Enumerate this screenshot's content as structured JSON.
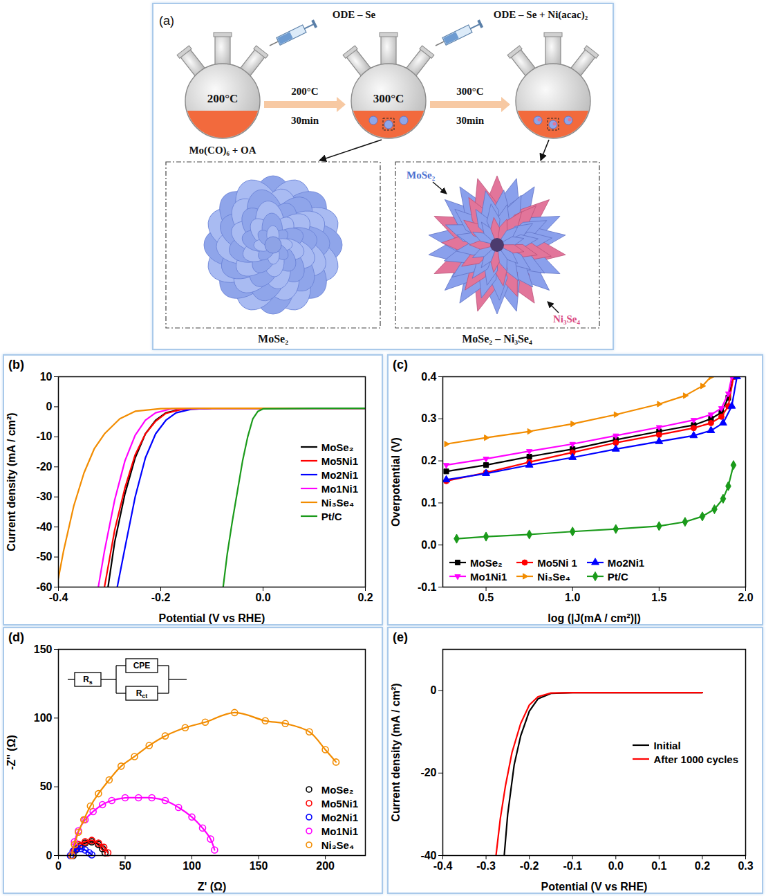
{
  "panel_a": {
    "letter": "(a)",
    "syringe_labels": [
      "ODE – Se",
      "ODE – Se + Ni(acac)₂"
    ],
    "flask_labels": [
      "200°C",
      "300°C"
    ],
    "precursor": "Mo(CO)₆ + OA",
    "steps": [
      {
        "temperature": "200°C",
        "time": "30min"
      },
      {
        "temperature": "300°C",
        "time": "30min"
      }
    ],
    "products": [
      {
        "caption": "MoSe₂"
      },
      {
        "caption": "MoSe₂ – Ni₃Se₄",
        "labels": [
          "MoSe₂",
          "Ni₃Se₄"
        ]
      }
    ]
  },
  "chart_data": [
    {
      "panel": "(b)",
      "type": "line",
      "x_label": "Potential (V vs RHE)",
      "y_label": "Current density (mA / cm²)",
      "xlim": [
        -0.4,
        0.2
      ],
      "ylim": [
        -60,
        10
      ],
      "xticks": [
        -0.4,
        -0.2,
        {
          "value": 0,
          "label": "0.0"
        },
        0.2
      ],
      "yticks": [
        -60,
        -50,
        -40,
        -30,
        -20,
        -10,
        0,
        10
      ],
      "grid": false,
      "legend": "right",
      "series": [
        {
          "name": "MoSe₂",
          "color": "#000000",
          "line_style": "solid",
          "x": [
            0.2,
            0.0,
            -0.1,
            -0.16,
            -0.19,
            -0.21,
            -0.23,
            -0.25,
            -0.27,
            -0.29,
            -0.303
          ],
          "values": [
            -0.5,
            -0.5,
            -0.5,
            -0.8,
            -2,
            -4.5,
            -9,
            -17,
            -29,
            -45,
            -60
          ]
        },
        {
          "name": "Mo5Ni1",
          "color": "#ff0000",
          "line_style": "solid",
          "x": [
            0.2,
            0.0,
            -0.1,
            -0.16,
            -0.19,
            -0.21,
            -0.23,
            -0.25,
            -0.27,
            -0.29,
            -0.31
          ],
          "values": [
            -0.5,
            -0.5,
            -0.5,
            -0.9,
            -2.2,
            -4.8,
            -9,
            -16,
            -27,
            -41,
            -60
          ]
        },
        {
          "name": "Mo2Ni1",
          "color": "#0000ff",
          "line_style": "solid",
          "x": [
            0.2,
            0.0,
            -0.1,
            -0.14,
            -0.17,
            -0.19,
            -0.21,
            -0.23,
            -0.25,
            -0.27,
            -0.285
          ],
          "values": [
            -0.5,
            -0.5,
            -0.5,
            -0.8,
            -2,
            -4.5,
            -9,
            -17,
            -30,
            -47,
            -60
          ]
        },
        {
          "name": "Mo1Ni1",
          "color": "#ff00ff",
          "line_style": "solid",
          "x": [
            0.2,
            0.0,
            -0.1,
            -0.18,
            -0.21,
            -0.23,
            -0.25,
            -0.27,
            -0.29,
            -0.31,
            -0.322
          ],
          "values": [
            -0.5,
            -0.5,
            -0.5,
            -0.7,
            -2,
            -4.5,
            -9.5,
            -18,
            -31,
            -48,
            -60
          ]
        },
        {
          "name": "Ni₃Se₄",
          "color": "#f28c00",
          "line_style": "solid",
          "x": [
            0.2,
            0.0,
            -0.1,
            -0.2,
            -0.25,
            -0.28,
            -0.31,
            -0.33,
            -0.35,
            -0.37,
            -0.39,
            -0.4
          ],
          "values": [
            -0.5,
            -0.5,
            -0.5,
            -0.6,
            -1.5,
            -4,
            -9,
            -14,
            -22,
            -33,
            -48,
            -57
          ]
        },
        {
          "name": "Pt/C",
          "color": "#1a9a1a",
          "line_style": "solid",
          "x": [
            0.2,
            0.1,
            0.0,
            -0.01,
            -0.02,
            -0.03,
            -0.04,
            -0.05,
            -0.06,
            -0.07,
            -0.078
          ],
          "values": [
            -0.5,
            -0.5,
            -0.7,
            -1.5,
            -4,
            -10,
            -18,
            -28,
            -38,
            -49,
            -60
          ]
        }
      ]
    },
    {
      "panel": "(c)",
      "type": "line",
      "x_label": "log (|J(mA / cm²)|)",
      "y_label": "Overpotential (V)",
      "xlim": [
        0.25,
        2.0
      ],
      "ylim": [
        -0.1,
        0.4
      ],
      "xticks": [
        0.5,
        {
          "value": 1,
          "label": "1.0"
        },
        1.5,
        {
          "value": 2,
          "label": "2.0"
        }
      ],
      "yticks": [
        -0.1,
        {
          "value": 0,
          "label": "0.0"
        },
        0.1,
        0.2,
        0.3,
        0.4
      ],
      "grid": false,
      "legend": "bottom-left",
      "series": [
        {
          "name": "MoSe₂",
          "color": "#000000",
          "marker": "square",
          "line_style": "solid",
          "x": [
            0.27,
            0.5,
            0.75,
            1.0,
            1.25,
            1.5,
            1.7,
            1.8,
            1.86,
            1.9,
            1.93
          ],
          "values": [
            0.175,
            0.19,
            0.21,
            0.228,
            0.25,
            0.27,
            0.285,
            0.3,
            0.315,
            0.35,
            0.4
          ]
        },
        {
          "name": "Mo5Ni 1",
          "color": "#ff0000",
          "marker": "circle",
          "line_style": "solid",
          "x": [
            0.27,
            0.5,
            0.75,
            1.0,
            1.25,
            1.5,
            1.7,
            1.8,
            1.86,
            1.9,
            1.93
          ],
          "values": [
            0.152,
            0.172,
            0.197,
            0.22,
            0.243,
            0.262,
            0.278,
            0.29,
            0.305,
            0.33,
            0.4
          ]
        },
        {
          "name": "Mo2Ni1",
          "color": "#0000ff",
          "marker": "triangle-up",
          "line_style": "solid",
          "x": [
            0.27,
            0.5,
            0.75,
            1.0,
            1.25,
            1.5,
            1.7,
            1.8,
            1.87,
            1.92,
            1.95
          ],
          "values": [
            0.155,
            0.17,
            0.19,
            0.208,
            0.228,
            0.246,
            0.26,
            0.272,
            0.29,
            0.33,
            0.4
          ]
        },
        {
          "name": "Mo1Ni1",
          "color": "#ff00ff",
          "marker": "triangle-down",
          "line_style": "solid",
          "x": [
            0.27,
            0.5,
            0.75,
            1.0,
            1.25,
            1.5,
            1.7,
            1.8,
            1.86,
            1.9,
            1.92
          ],
          "values": [
            0.19,
            0.205,
            0.223,
            0.24,
            0.26,
            0.28,
            0.297,
            0.31,
            0.325,
            0.36,
            0.4
          ]
        },
        {
          "name": "Ni₃Se₄",
          "color": "#f28c00",
          "marker": "triangle-right",
          "line_style": "solid",
          "x": [
            0.27,
            0.5,
            0.75,
            1.0,
            1.25,
            1.5,
            1.65,
            1.75,
            1.8
          ],
          "values": [
            0.24,
            0.255,
            0.27,
            0.288,
            0.31,
            0.335,
            0.355,
            0.378,
            0.4
          ]
        },
        {
          "name": "Pt/C",
          "color": "#1a9a1a",
          "marker": "diamond",
          "line_style": "solid",
          "x": [
            0.33,
            0.5,
            0.75,
            1.0,
            1.25,
            1.5,
            1.65,
            1.75,
            1.82,
            1.87,
            1.9,
            1.93
          ],
          "values": [
            0.015,
            0.02,
            0.025,
            0.032,
            0.038,
            0.045,
            0.055,
            0.068,
            0.085,
            0.11,
            0.14,
            0.19
          ]
        }
      ]
    },
    {
      "panel": "(d)",
      "type": "scatter",
      "x_label": "Z' (Ω)",
      "y_label": "-Z'' (Ω)",
      "xlim": [
        0,
        230
      ],
      "ylim": [
        0,
        150
      ],
      "xticks": [
        0,
        50,
        100,
        150,
        200
      ],
      "yticks": [
        0,
        50,
        100,
        150
      ],
      "grid": false,
      "legend": "bottom-right",
      "inset": {
        "labels": [
          "Rs",
          "CPE",
          "Rct"
        ]
      },
      "series": [
        {
          "name": "MoSe₂",
          "color": "#000000",
          "marker": "circle-open",
          "line_style": "solid",
          "x": [
            11,
            13,
            16,
            20,
            25,
            30,
            33,
            35
          ],
          "values": [
            0,
            4,
            7,
            9,
            10,
            8,
            5,
            2
          ]
        },
        {
          "name": "Mo5Ni1",
          "color": "#ff0000",
          "marker": "circle-open",
          "line_style": "solid",
          "x": [
            10,
            12,
            15,
            20,
            25,
            30,
            34,
            37
          ],
          "values": [
            0,
            4,
            8,
            10,
            11,
            9,
            6,
            2
          ]
        },
        {
          "name": "Mo2Ni1",
          "color": "#0000ff",
          "marker": "circle-open",
          "line_style": "solid",
          "x": [
            9,
            11,
            14,
            17,
            20,
            23,
            25
          ],
          "values": [
            0,
            3,
            5,
            5,
            4,
            2,
            0.5
          ]
        },
        {
          "name": "Mo1Ni1",
          "color": "#ff00ff",
          "marker": "circle-open",
          "line_style": "solid",
          "x": [
            10,
            12,
            15,
            20,
            26,
            33,
            40,
            50,
            60,
            70,
            80,
            90,
            100,
            108,
            114,
            117
          ],
          "values": [
            0,
            10,
            18,
            26,
            32,
            37,
            40,
            42,
            42,
            42,
            40,
            35,
            28,
            20,
            12,
            4
          ]
        },
        {
          "name": "Ni₃Se₄",
          "color": "#f28c00",
          "marker": "circle-open",
          "line_style": "solid",
          "x": [
            10,
            12,
            15,
            19,
            24,
            30,
            38,
            47,
            57,
            68,
            80,
            95,
            110,
            132,
            155,
            170,
            188,
            200,
            208
          ],
          "values": [
            0,
            8,
            17,
            26,
            36,
            45,
            55,
            65,
            72,
            80,
            87,
            93,
            97,
            104,
            98,
            96,
            90,
            77,
            68
          ]
        }
      ]
    },
    {
      "panel": "(e)",
      "type": "line",
      "x_label": "Potential (V vs RHE)",
      "y_label": "Current density (mA / cm²)",
      "xlim": [
        -0.4,
        0.3
      ],
      "ylim": [
        -40,
        10
      ],
      "xticks": [
        -0.4,
        -0.3,
        -0.2,
        -0.1,
        {
          "value": 0,
          "label": "0.0"
        },
        0.1,
        0.2,
        0.3
      ],
      "yticks": [
        -40,
        -20,
        0
      ],
      "grid": false,
      "legend": "right",
      "series": [
        {
          "name": "Initial",
          "color": "#000000",
          "line_style": "solid",
          "x": [
            0.2,
            0.0,
            -0.1,
            -0.15,
            -0.18,
            -0.2,
            -0.22,
            -0.235,
            -0.25,
            -0.258
          ],
          "values": [
            -0.5,
            -0.5,
            -0.5,
            -0.7,
            -2,
            -5,
            -11,
            -18,
            -30,
            -40
          ]
        },
        {
          "name": "After 1000 cycles",
          "color": "#ff0000",
          "line_style": "solid",
          "x": [
            0.2,
            0.0,
            -0.1,
            -0.15,
            -0.18,
            -0.2,
            -0.22,
            -0.24,
            -0.255,
            -0.267,
            -0.277
          ],
          "values": [
            -0.5,
            -0.5,
            -0.5,
            -0.6,
            -1.5,
            -3.5,
            -8,
            -15,
            -23,
            -31,
            -40
          ]
        }
      ]
    }
  ]
}
